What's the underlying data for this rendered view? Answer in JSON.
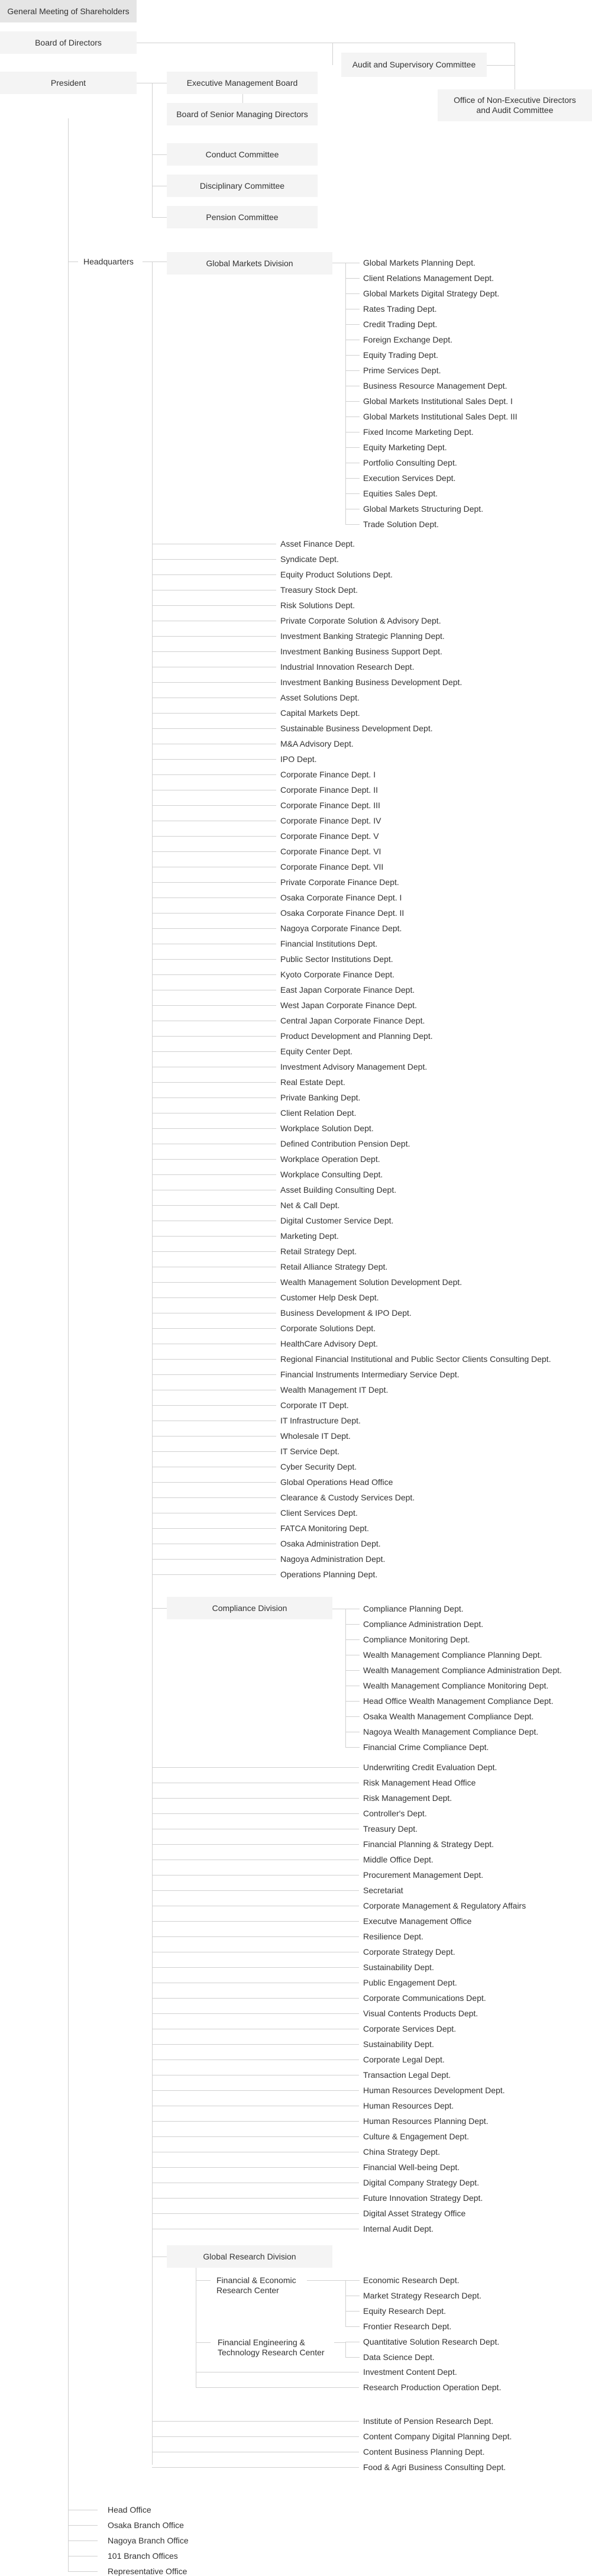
{
  "governance": {
    "general_meeting": "General Meeting of Shareholders",
    "board_of_directors": "Board of Directors",
    "audit_committee": "Audit and Supervisory Committee",
    "office_non_exec": [
      "Office of Non-Executive Directors",
      "and Audit Committee"
    ],
    "president": "President"
  },
  "president_bodies": [
    "Executive Management Board",
    "Board of Senior Managing Directors",
    "Conduct Committee",
    "Disciplinary Committee",
    "Pension Committee"
  ],
  "headquarters": {
    "label": "Headquarters",
    "global_markets": {
      "name": "Global Markets Division",
      "depts": [
        "Global Markets Planning Dept.",
        "Client Relations Management Dept.",
        "Global Markets Digital Strategy Dept.",
        "Rates Trading Dept.",
        "Credit Trading Dept.",
        "Foreign Exchange Dept.",
        "Equity Trading Dept.",
        "Prime Services Dept.",
        "Business Resource Management Dept.",
        "Global Markets Institutional Sales Dept. I",
        "Global Markets Institutional Sales Dept. III",
        "Fixed Income Marketing Dept.",
        "Equity Marketing Dept.",
        "Portfolio Consulting Dept.",
        "Execution Services Dept.",
        "Equities Sales Dept.",
        "Global Markets Structuring Dept.",
        "Trade Solution Dept."
      ]
    },
    "depts_group1": [
      "Asset Finance Dept.",
      "Syndicate Dept.",
      "Equity Product Solutions Dept.",
      "Treasury Stock Dept.",
      "Risk Solutions Dept.",
      "Private Corporate Solution & Advisory Dept.",
      "Investment Banking Strategic Planning Dept.",
      "Investment Banking Business Support Dept.",
      "Industrial Innovation Research Dept.",
      "Investment Banking Business Development Dept.",
      "Asset Solutions Dept.",
      "Capital Markets Dept.",
      "Sustainable Business Development Dept.",
      "M&A Advisory Dept.",
      "IPO Dept.",
      "Corporate Finance Dept. I",
      "Corporate Finance Dept. II",
      "Corporate Finance Dept. III",
      "Corporate Finance Dept. IV",
      "Corporate Finance Dept. V",
      "Corporate Finance Dept. VI",
      "Corporate Finance Dept. VII",
      "Private Corporate Finance Dept.",
      "Osaka Corporate Finance Dept. I",
      "Osaka Corporate Finance Dept. II",
      "Nagoya Corporate Finance Dept.",
      "Financial Institutions Dept.",
      "Public Sector Institutions Dept.",
      "Kyoto Corporate Finance Dept.",
      "East Japan Corporate Finance Dept.",
      "West Japan Corporate Finance Dept.",
      "Central Japan Corporate Finance Dept.",
      "Product Development and Planning Dept.",
      "Equity Center Dept.",
      "Investment Advisory Management Dept.",
      "Real Estate Dept.",
      "Private Banking Dept.",
      "Client Relation Dept.",
      "Workplace Solution Dept.",
      "Defined Contribution Pension Dept.",
      "Workplace Operation Dept.",
      "Workplace Consulting Dept.",
      "Asset Building Consulting Dept.",
      "Net & Call Dept.",
      "Digital Customer Service Dept.",
      "Marketing Dept.",
      "Retail Strategy Dept.",
      "Retail Alliance Strategy Dept.",
      "Wealth Management Solution Development Dept.",
      "Customer Help Desk Dept.",
      "Business Development & IPO Dept.",
      "Corporate Solutions Dept.",
      "HealthCare Advisory Dept.",
      "Regional Financial Institutional and Public Sector Clients Consulting Dept.",
      "Financial Instruments Intermediary Service Dept.",
      "Wealth Management IT Dept.",
      "Corporate IT Dept.",
      "IT Infrastructure Dept.",
      "Wholesale IT Dept.",
      "IT Service Dept.",
      "Cyber Security Dept.",
      "Global Operations Head Office",
      "Clearance & Custody Services Dept.",
      "Client Services Dept.",
      "FATCA Monitoring Dept.",
      "Osaka Administration Dept.",
      "Nagoya Administration Dept.",
      "Operations Planning Dept."
    ],
    "compliance": {
      "name": "Compliance Division",
      "depts": [
        "Compliance Planning Dept.",
        "Compliance Administration Dept.",
        "Compliance Monitoring Dept.",
        "Wealth Management Compliance Planning Dept.",
        "Wealth Management Compliance Administration Dept.",
        "Wealth Management Compliance Monitoring Dept.",
        "Head Office Wealth Management Compliance Dept.",
        "Osaka Wealth Management Compliance Dept.",
        "Nagoya Wealth Management Compliance Dept.",
        "Financial Crime Compliance Dept."
      ]
    },
    "depts_group2": [
      "Underwriting Credit Evaluation Dept.",
      "Risk Management Head Office",
      "Risk Management Dept.",
      "Controller's Dept.",
      "Treasury Dept.",
      "Financial Planning & Strategy Dept.",
      "Middle Office Dept.",
      "Procurement Management Dept.",
      "Secretariat",
      "Corporate Management & Regulatory Affairs",
      "Executve Management Office",
      "Resilience Dept.",
      "Corporate Strategy Dept.",
      "Sustainability Dept.",
      "Public Engagement Dept.",
      "Corporate Communications Dept.",
      "Visual Contents Products Dept.",
      "Corporate Services Dept.",
      "Sustainability Dept.",
      "Corporate Legal Dept.",
      "Transaction Legal Dept.",
      "Human Resources Development Dept.",
      "Human Resources Dept.",
      "Human Resources Planning Dept.",
      "Culture & Engagement Dept.",
      "China Strategy Dept.",
      "Financial Well-being Dept.",
      "Digital Company Strategy Dept.",
      "Future Innovation Strategy Dept.",
      "Digital Asset Strategy Office",
      "Internal Audit Dept."
    ],
    "global_research": {
      "name": "Global Research Division",
      "centers": [
        {
          "name": [
            "Financial & Economic",
            "Research Center"
          ],
          "depts": [
            "Economic Research Dept.",
            "Market Strategy Research Dept.",
            "Equity Research Dept.",
            "Frontier Research Dept."
          ]
        },
        {
          "name": [
            "Financial Engineering &",
            "Technology Research Center"
          ],
          "depts": [
            "Quantitative Solution Research Dept.",
            "Data Science Dept."
          ]
        }
      ],
      "depts": [
        "Investment Content Dept.",
        "Research Production Operation Dept."
      ]
    },
    "depts_group3": [
      "Institute of Pension Research Dept.",
      "Content Company Digital Planning Dept.",
      "Content Business Planning Dept.",
      "Food & Agri Business Consulting Dept."
    ]
  },
  "offices": [
    "Head Office",
    "Osaka Branch Office",
    "Nagoya Branch Office",
    "101 Branch Offices",
    "Representative Office"
  ],
  "colors": {
    "line": "#d0d0d0",
    "box": "#f4f4f4",
    "box_top": "#e5e5e5",
    "text": "#333333"
  }
}
